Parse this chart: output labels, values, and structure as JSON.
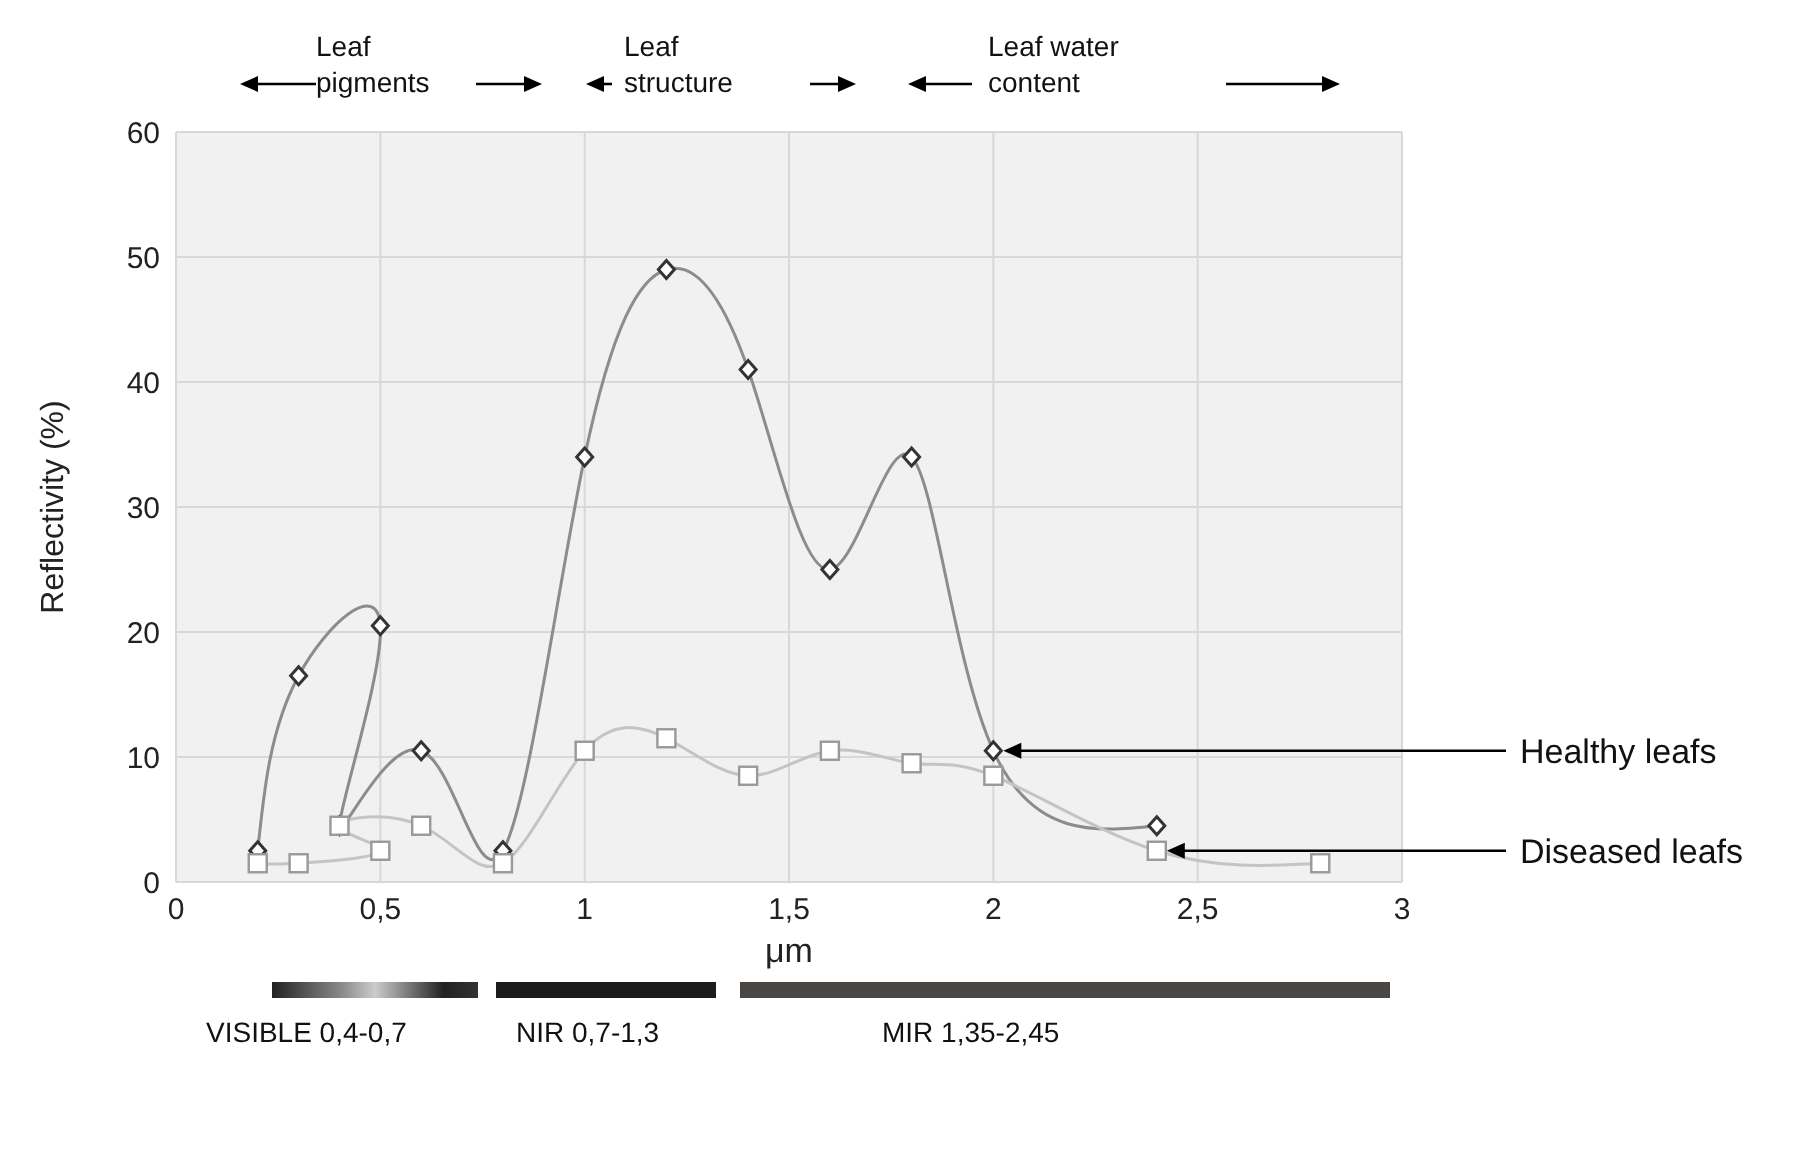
{
  "chart_data": {
    "type": "line",
    "xlabel": "μm",
    "ylabel": "Reflectivity (%)",
    "xlim": [
      0,
      3
    ],
    "xticks": [
      0,
      {
        "value": 0.5,
        "label": "0,5"
      },
      1,
      {
        "value": 1.5,
        "label": "1,5"
      },
      2,
      {
        "value": 2.5,
        "label": "2,5"
      },
      3
    ],
    "ylim": [
      0,
      60
    ],
    "yticks": [
      0,
      10,
      20,
      30,
      40,
      50,
      60
    ],
    "grid": true,
    "line_style": "solid",
    "series": [
      {
        "name": "Healthy leafs",
        "color": "#8c8c8c",
        "marker": "diamond",
        "x": [
          0.2,
          0.3,
          0.5,
          0.4,
          0.6,
          0.8,
          1,
          1.2,
          1.4,
          1.6,
          1.8,
          2,
          2.4
        ],
        "values": [
          2.5,
          16.5,
          20.5,
          4.5,
          10.5,
          2.5,
          34,
          49,
          41,
          25,
          34,
          10.5,
          4.5
        ]
      },
      {
        "name": "Diseased leafs",
        "color": "#c4c4c4",
        "marker": "square",
        "x": [
          0.2,
          0.3,
          0.5,
          0.4,
          0.6,
          0.8,
          1,
          1.2,
          1.4,
          1.6,
          1.8,
          2,
          2.4,
          2.8
        ],
        "values": [
          1.5,
          1.5,
          2.5,
          4.5,
          4.5,
          1.5,
          10.5,
          11.5,
          8.5,
          10.5,
          9.5,
          8.5,
          2.5,
          1.5
        ]
      }
    ],
    "annotations": [
      "Leaf pigments",
      "Leaf structure",
      "Leaf water content",
      "VISIBLE 0,4-0,7",
      "NIR 0,7-1,3",
      "MIR 1,35-2,45"
    ]
  }
}
